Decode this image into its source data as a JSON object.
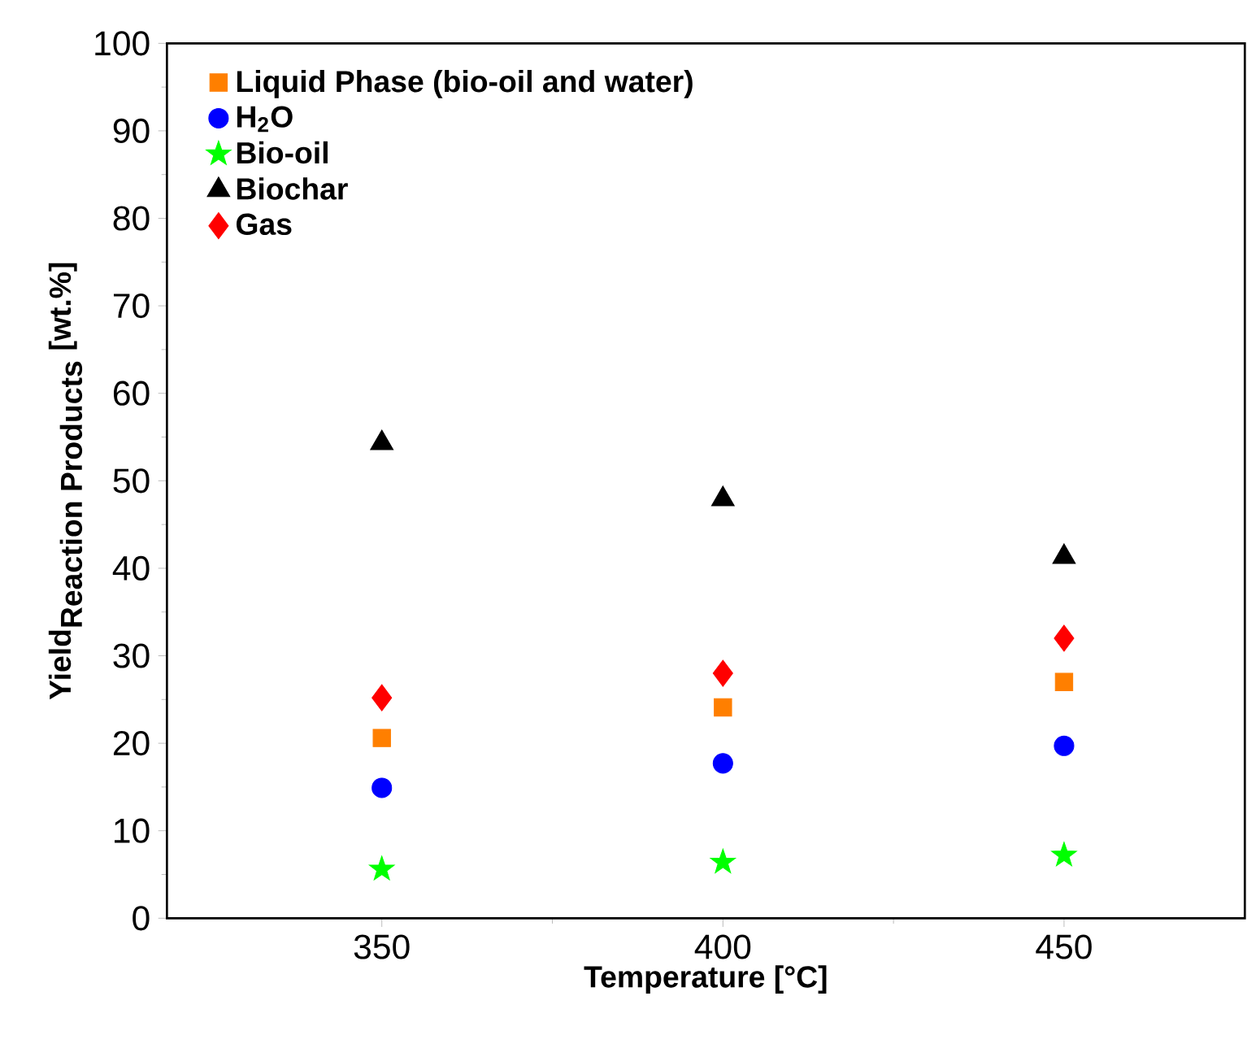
{
  "chart_data": {
    "type": "scatter",
    "xlabel": "Temperature [°C]",
    "ylabel": "\\mbox{\\bfseries Yield}_{\\mbox{\\bfseries Reaction Products}}\\mbox{\\bfseries\\ [wt.\\%]}",
    "x": [
      350,
      400,
      450
    ],
    "xlim": [
      318.5,
      476.5
    ],
    "xticks": [
      350,
      400,
      450
    ],
    "ylim": [
      0,
      100
    ],
    "yticks": [
      0,
      10,
      20,
      30,
      40,
      50,
      60,
      70,
      80,
      90,
      100
    ],
    "legend": "top left",
    "grid": false,
    "series": [
      {
        "name": "Liquid Phase (bio-oil and water)",
        "color": "#ff7f00",
        "marker": "square",
        "values": [
          20.6,
          24.1,
          27.0
        ]
      },
      {
        "name": "H$_{2}$O",
        "color": "#0000ff",
        "marker": "circle",
        "values": [
          14.9,
          17.7,
          19.7
        ]
      },
      {
        "name": "Bio-oil",
        "color": "#00ff00",
        "marker": "star",
        "values": [
          5.6,
          6.4,
          7.2
        ]
      },
      {
        "name": "Biochar",
        "color": "#000000",
        "marker": "triangle",
        "values": [
          54.3,
          47.9,
          41.3
        ]
      },
      {
        "name": "Gas",
        "color": "#ff0000",
        "marker": "diamond",
        "values": [
          25.2,
          28.0,
          32.0
        ]
      }
    ]
  }
}
